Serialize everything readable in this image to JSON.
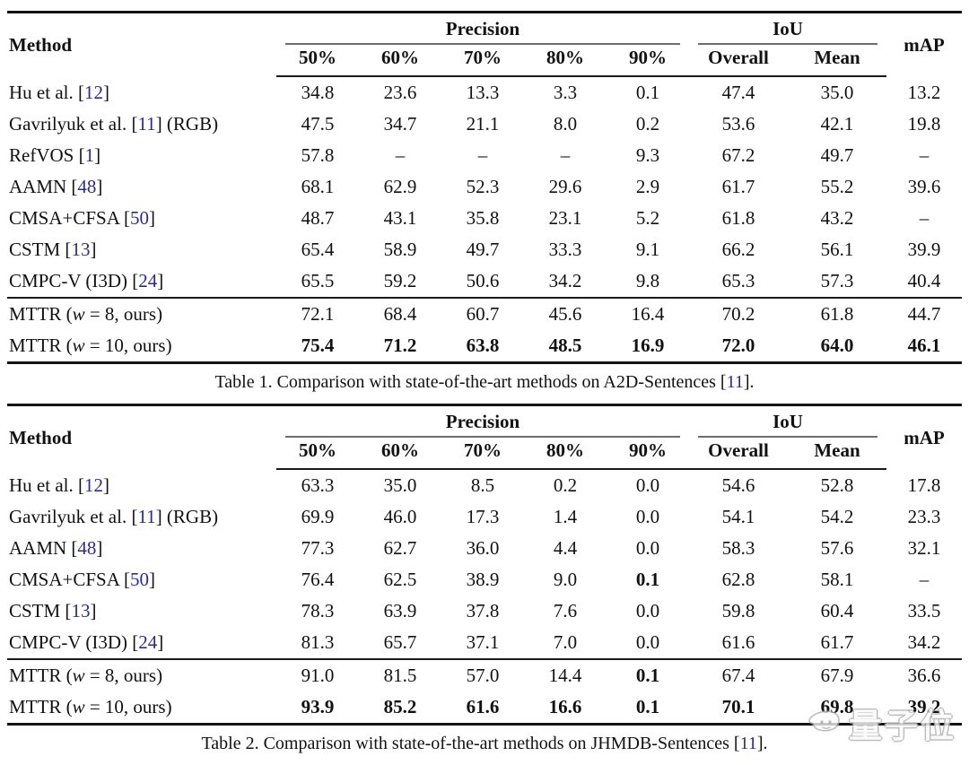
{
  "header": {
    "method": "Method",
    "precision": "Precision",
    "iou": "IoU",
    "map": "mAP",
    "precision_cols": [
      "50%",
      "60%",
      "70%",
      "80%",
      "90%"
    ],
    "iou_cols": [
      "Overall",
      "Mean"
    ]
  },
  "colors": {
    "citation_link": "#2b2b8f",
    "rule_dark": "#141414",
    "rule_gray": "#6e6e6e"
  },
  "tables": [
    {
      "name": "A2D-Sentences comparison",
      "caption": [
        {
          "t": "Table 1. Comparison with state-of-the-art methods on A2D-Sentences ["
        },
        {
          "t": "11",
          "s": "c"
        },
        {
          "t": "]."
        }
      ],
      "rows": [
        {
          "method": [
            {
              "t": "Hu et al. ["
            },
            {
              "t": "12",
              "s": "c"
            },
            {
              "t": "]"
            }
          ],
          "values": [
            "34.8",
            "23.6",
            "13.3",
            "3.3",
            "0.1",
            "47.4",
            "35.0",
            "13.2"
          ],
          "bold": []
        },
        {
          "method": [
            {
              "t": "Gavrilyuk et al. ["
            },
            {
              "t": "11",
              "s": "c"
            },
            {
              "t": "] (RGB)"
            }
          ],
          "values": [
            "47.5",
            "34.7",
            "21.1",
            "8.0",
            "0.2",
            "53.6",
            "42.1",
            "19.8"
          ],
          "bold": []
        },
        {
          "method": [
            {
              "t": "RefVOS ["
            },
            {
              "t": "1",
              "s": "c"
            },
            {
              "t": "]"
            }
          ],
          "values": [
            "57.8",
            "–",
            "–",
            "–",
            "9.3",
            "67.2",
            "49.7",
            "–"
          ],
          "bold": []
        },
        {
          "method": [
            {
              "t": "AAMN ["
            },
            {
              "t": "48",
              "s": "c"
            },
            {
              "t": "]"
            }
          ],
          "values": [
            "68.1",
            "62.9",
            "52.3",
            "29.6",
            "2.9",
            "61.7",
            "55.2",
            "39.6"
          ],
          "bold": []
        },
        {
          "method": [
            {
              "t": "CMSA+CFSA ["
            },
            {
              "t": "50",
              "s": "c"
            },
            {
              "t": "]"
            }
          ],
          "values": [
            "48.7",
            "43.1",
            "35.8",
            "23.1",
            "5.2",
            "61.8",
            "43.2",
            "–"
          ],
          "bold": []
        },
        {
          "method": [
            {
              "t": "CSTM ["
            },
            {
              "t": "13",
              "s": "c"
            },
            {
              "t": "]"
            }
          ],
          "values": [
            "65.4",
            "58.9",
            "49.7",
            "33.3",
            "9.1",
            "66.2",
            "56.1",
            "39.9"
          ],
          "bold": []
        },
        {
          "method": [
            {
              "t": "CMPC-V (I3D) ["
            },
            {
              "t": "24",
              "s": "c"
            },
            {
              "t": "]"
            }
          ],
          "values": [
            "65.5",
            "59.2",
            "50.6",
            "34.2",
            "9.8",
            "65.3",
            "57.3",
            "40.4"
          ],
          "bold": []
        }
      ],
      "ours_rows": [
        {
          "method": [
            {
              "t": "MTTR ("
            },
            {
              "t": "w",
              "s": "i"
            },
            {
              "t": " = 8, ours)"
            }
          ],
          "values": [
            "72.1",
            "68.4",
            "60.7",
            "45.6",
            "16.4",
            "70.2",
            "61.8",
            "44.7"
          ],
          "bold": []
        },
        {
          "method": [
            {
              "t": "MTTR ("
            },
            {
              "t": "w",
              "s": "i"
            },
            {
              "t": " = 10, ours)"
            }
          ],
          "values": [
            "75.4",
            "71.2",
            "63.8",
            "48.5",
            "16.9",
            "72.0",
            "64.0",
            "46.1"
          ],
          "bold": [
            0,
            1,
            2,
            3,
            4,
            5,
            6,
            7
          ]
        }
      ]
    },
    {
      "name": "JHMDB-Sentences comparison",
      "caption": [
        {
          "t": "Table 2. Comparison with state-of-the-art methods on JHMDB-Sentences ["
        },
        {
          "t": "11",
          "s": "c"
        },
        {
          "t": "]."
        }
      ],
      "rows": [
        {
          "method": [
            {
              "t": "Hu et al. ["
            },
            {
              "t": "12",
              "s": "c"
            },
            {
              "t": "]"
            }
          ],
          "values": [
            "63.3",
            "35.0",
            "8.5",
            "0.2",
            "0.0",
            "54.6",
            "52.8",
            "17.8"
          ],
          "bold": []
        },
        {
          "method": [
            {
              "t": "Gavrilyuk et al. ["
            },
            {
              "t": "11",
              "s": "c"
            },
            {
              "t": "] (RGB)"
            }
          ],
          "values": [
            "69.9",
            "46.0",
            "17.3",
            "1.4",
            "0.0",
            "54.1",
            "54.2",
            "23.3"
          ],
          "bold": []
        },
        {
          "method": [
            {
              "t": "AAMN ["
            },
            {
              "t": "48",
              "s": "c"
            },
            {
              "t": "]"
            }
          ],
          "values": [
            "77.3",
            "62.7",
            "36.0",
            "4.4",
            "0.0",
            "58.3",
            "57.6",
            "32.1"
          ],
          "bold": []
        },
        {
          "method": [
            {
              "t": "CMSA+CFSA ["
            },
            {
              "t": "50",
              "s": "c"
            },
            {
              "t": "]"
            }
          ],
          "values": [
            "76.4",
            "62.5",
            "38.9",
            "9.0",
            "0.1",
            "62.8",
            "58.1",
            "–"
          ],
          "bold": [
            4
          ]
        },
        {
          "method": [
            {
              "t": "CSTM ["
            },
            {
              "t": "13",
              "s": "c"
            },
            {
              "t": "]"
            }
          ],
          "values": [
            "78.3",
            "63.9",
            "37.8",
            "7.6",
            "0.0",
            "59.8",
            "60.4",
            "33.5"
          ],
          "bold": []
        },
        {
          "method": [
            {
              "t": "CMPC-V (I3D) ["
            },
            {
              "t": "24",
              "s": "c"
            },
            {
              "t": "]"
            }
          ],
          "values": [
            "81.3",
            "65.7",
            "37.1",
            "7.0",
            "0.0",
            "61.6",
            "61.7",
            "34.2"
          ],
          "bold": []
        }
      ],
      "ours_rows": [
        {
          "method": [
            {
              "t": "MTTR ("
            },
            {
              "t": "w",
              "s": "i"
            },
            {
              "t": " = 8, ours)"
            }
          ],
          "values": [
            "91.0",
            "81.5",
            "57.0",
            "14.4",
            "0.1",
            "67.4",
            "67.9",
            "36.6"
          ],
          "bold": [
            4
          ]
        },
        {
          "method": [
            {
              "t": "MTTR ("
            },
            {
              "t": "w",
              "s": "i"
            },
            {
              "t": " = 10, ours)"
            }
          ],
          "values": [
            "93.9",
            "85.2",
            "61.6",
            "16.6",
            "0.1",
            "70.1",
            "69.8",
            "39.2"
          ],
          "bold": [
            0,
            1,
            2,
            3,
            4,
            5,
            6,
            7
          ]
        }
      ]
    }
  ],
  "watermark": {
    "text": "量子位"
  }
}
